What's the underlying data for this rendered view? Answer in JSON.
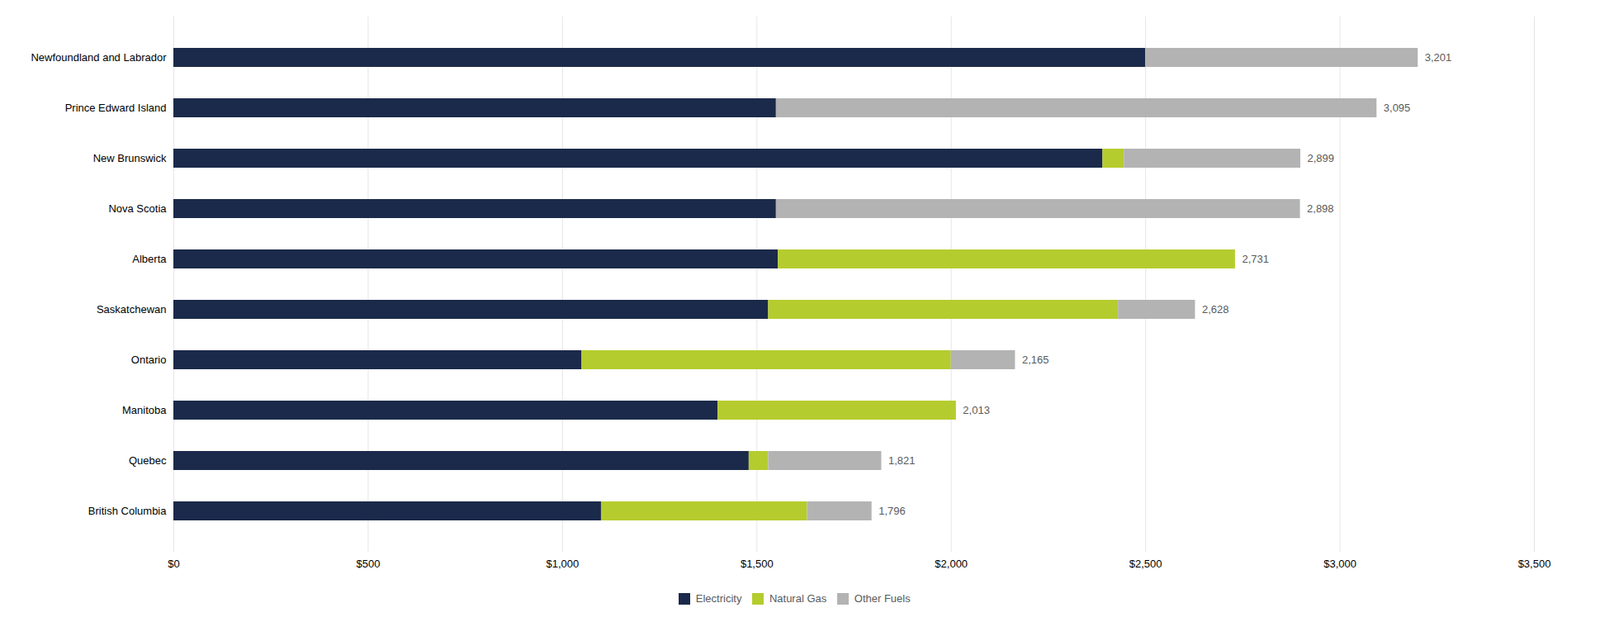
{
  "chart_data": {
    "type": "bar",
    "orientation": "horizontal",
    "stacked": true,
    "categories": [
      "Newfoundland and Labrador",
      "Prince Edward Island",
      "New Brunswick",
      "Nova Scotia",
      "Alberta",
      "Saskatchewan",
      "Ontario",
      "Manitoba",
      "Quebec",
      "British Columbia"
    ],
    "series": [
      {
        "name": "Electricity",
        "color": "#1b2a4a",
        "values": [
          2500,
          1550,
          2390,
          1550,
          1555,
          1530,
          1050,
          1400,
          1480,
          1100
        ]
      },
      {
        "name": "Natural Gas",
        "color": "#b5cc2e",
        "values": [
          0,
          0,
          55,
          0,
          1176,
          900,
          950,
          613,
          50,
          530
        ]
      },
      {
        "name": "Other Fuels",
        "color": "#b3b3b3",
        "values": [
          701,
          1545,
          454,
          1348,
          0,
          198,
          165,
          0,
          291,
          166
        ]
      }
    ],
    "totals": [
      3201,
      3095,
      2899,
      2898,
      2731,
      2628,
      2165,
      2013,
      1821,
      1796
    ],
    "total_labels": [
      "3,201",
      "3,095",
      "2,899",
      "2,898",
      "2,731",
      "2,628",
      "2,165",
      "2,013",
      "1,821",
      "1,796"
    ],
    "xlim": [
      0,
      3500
    ],
    "xticks": [
      {
        "value": 0,
        "label": "$0"
      },
      {
        "value": 500,
        "label": "$500"
      },
      {
        "value": 1000,
        "label": "$1,000"
      },
      {
        "value": 1500,
        "label": "$1,500"
      },
      {
        "value": 2000,
        "label": "$2,000"
      },
      {
        "value": 2500,
        "label": "$2,500"
      },
      {
        "value": 3000,
        "label": "$3,000"
      },
      {
        "value": 3500,
        "label": "$3,500"
      }
    ],
    "grid": true,
    "legend": "bottom"
  }
}
